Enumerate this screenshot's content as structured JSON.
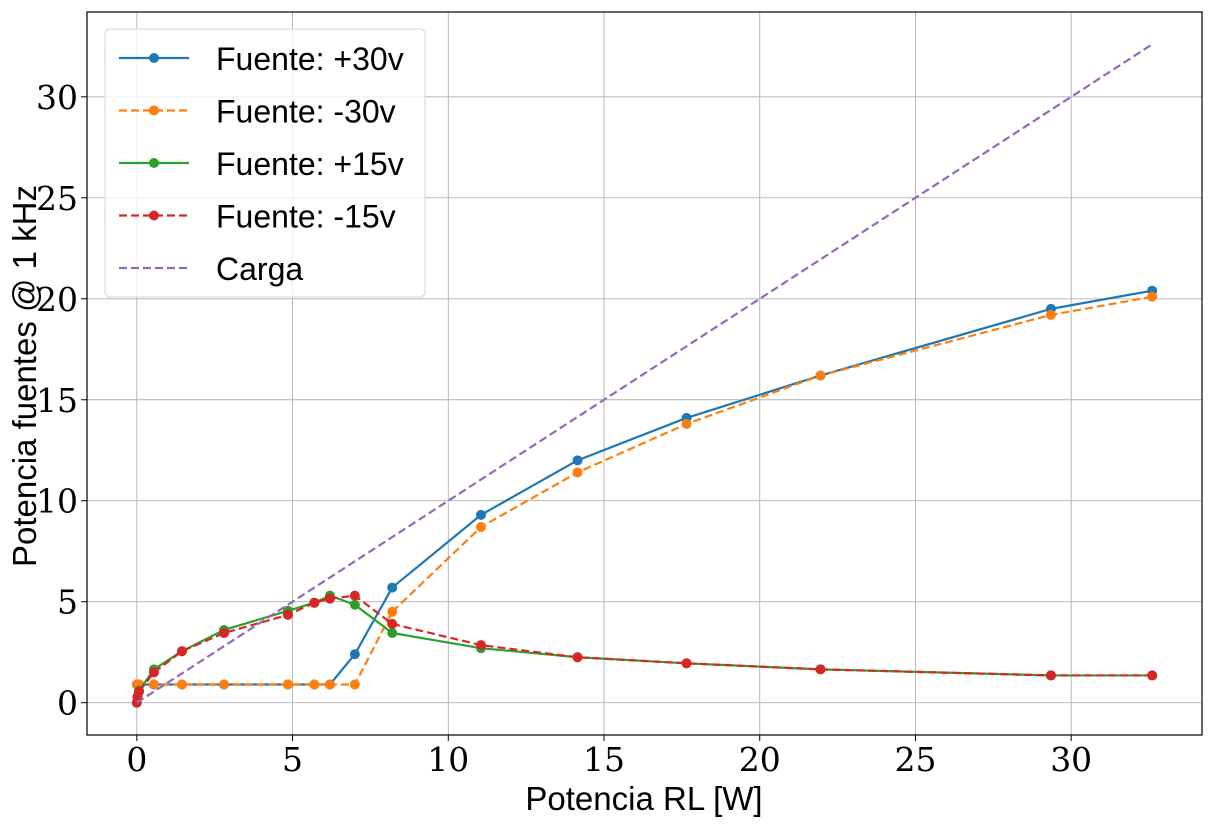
{
  "chart_data": {
    "type": "line",
    "title": "",
    "xlabel": "Potencia RL [W]",
    "ylabel": "Potencia fuentes @ 1 kHz",
    "xlim": [
      -1.6,
      34.2
    ],
    "ylim": [
      -1.6,
      34.2
    ],
    "xticks": [
      0,
      5,
      10,
      15,
      20,
      25,
      30
    ],
    "yticks": [
      0,
      5,
      10,
      15,
      20,
      25,
      30
    ],
    "grid": true,
    "legend_position": "top-left",
    "series": [
      {
        "name": "Fuente: +30v",
        "color": "#1f77b4",
        "linestyle": "solid",
        "marker": "circle",
        "x": [
          0.0,
          0.02,
          0.07,
          0.55,
          1.45,
          2.8,
          4.85,
          5.7,
          6.2,
          7.0,
          8.2,
          11.05,
          14.15,
          17.65,
          21.95,
          29.35,
          32.6
        ],
        "y": [
          0.9,
          0.9,
          0.9,
          0.9,
          0.9,
          0.9,
          0.9,
          0.9,
          0.9,
          2.4,
          5.7,
          9.3,
          12.0,
          14.1,
          16.2,
          19.5,
          20.4
        ]
      },
      {
        "name": "Fuente: -30v",
        "color": "#ff7f0e",
        "linestyle": "dashed",
        "marker": "circle",
        "x": [
          0.0,
          0.02,
          0.07,
          0.55,
          1.45,
          2.8,
          4.85,
          5.7,
          6.2,
          7.0,
          8.2,
          11.05,
          14.15,
          17.65,
          21.95,
          29.35,
          32.6
        ],
        "y": [
          0.9,
          0.9,
          0.9,
          0.9,
          0.9,
          0.9,
          0.9,
          0.9,
          0.9,
          0.9,
          4.5,
          8.7,
          11.4,
          13.8,
          16.2,
          19.2,
          20.1
        ]
      },
      {
        "name": "Fuente: +15v",
        "color": "#2ca02c",
        "linestyle": "solid",
        "marker": "circle",
        "x": [
          0.0,
          0.02,
          0.07,
          0.55,
          1.45,
          2.8,
          4.85,
          5.7,
          6.2,
          7.0,
          8.2,
          11.05,
          14.15,
          17.65,
          21.95,
          29.35,
          32.6
        ],
        "y": [
          0.0,
          0.3,
          0.6,
          1.65,
          2.55,
          3.6,
          4.55,
          4.95,
          5.3,
          4.85,
          3.45,
          2.7,
          2.25,
          1.95,
          1.65,
          1.35,
          1.35
        ]
      },
      {
        "name": "Fuente: -15v",
        "color": "#d62728",
        "linestyle": "dashed",
        "marker": "circle",
        "x": [
          0.0,
          0.02,
          0.07,
          0.55,
          1.45,
          2.8,
          4.85,
          5.7,
          6.2,
          7.0,
          8.2,
          11.05,
          14.15,
          17.65,
          21.95,
          29.35,
          32.6
        ],
        "y": [
          0.0,
          0.3,
          0.55,
          1.5,
          2.55,
          3.45,
          4.35,
          4.95,
          5.15,
          5.3,
          3.9,
          2.85,
          2.25,
          1.95,
          1.65,
          1.35,
          1.35
        ]
      },
      {
        "name": "Carga",
        "color": "#9467bd",
        "linestyle": "dashed",
        "marker": "none",
        "x": [
          0.0,
          32.6
        ],
        "y": [
          0.0,
          32.6
        ]
      }
    ]
  }
}
